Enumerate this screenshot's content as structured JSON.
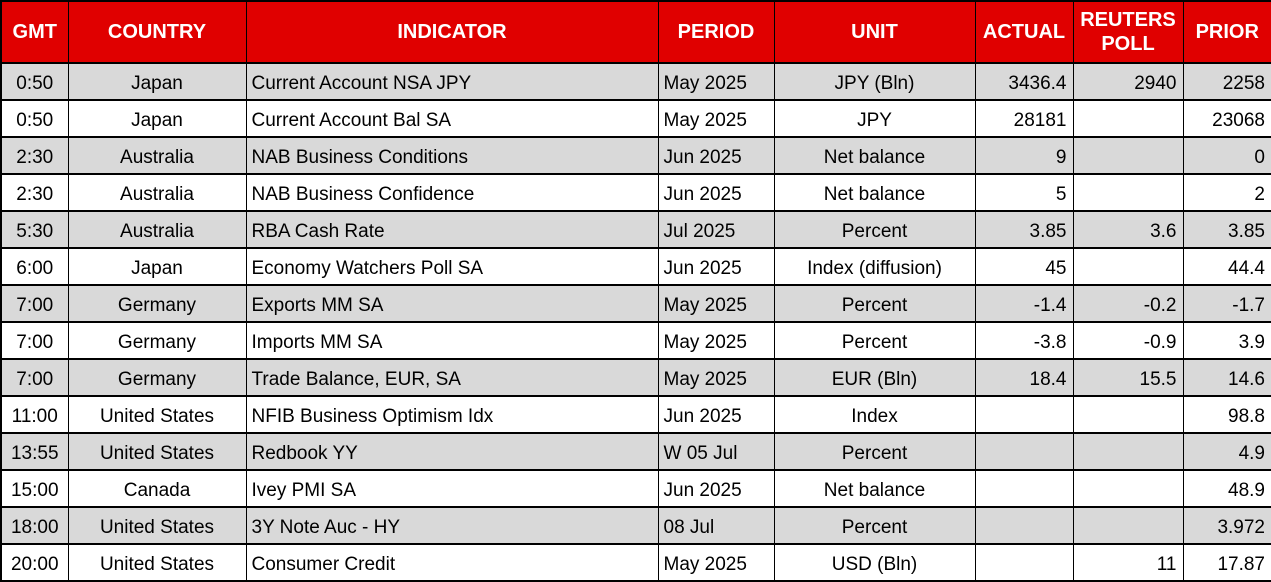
{
  "colors": {
    "header_bg": "#e00000",
    "header_text": "#ffffff",
    "row_odd_bg": "#d9d9d9",
    "row_even_bg": "#ffffff",
    "grid": "#000000",
    "body_text": "#000000"
  },
  "table": {
    "columns": [
      {
        "key": "gmt",
        "label": "GMT"
      },
      {
        "key": "country",
        "label": "COUNTRY"
      },
      {
        "key": "indicator",
        "label": "INDICATOR"
      },
      {
        "key": "period",
        "label": "PERIOD"
      },
      {
        "key": "unit",
        "label": "UNIT"
      },
      {
        "key": "actual",
        "label": "ACTUAL"
      },
      {
        "key": "reuters_poll",
        "label": "REUTERS POLL"
      },
      {
        "key": "prior",
        "label": "PRIOR"
      }
    ],
    "rows": [
      {
        "gmt": "0:50",
        "country": "Japan",
        "indicator": "Current Account NSA JPY",
        "period": "May 2025",
        "unit": "JPY (Bln)",
        "actual": "3436.4",
        "reuters_poll": "2940",
        "prior": "2258"
      },
      {
        "gmt": "0:50",
        "country": "Japan",
        "indicator": "Current Account Bal SA",
        "period": "May 2025",
        "unit": "JPY",
        "actual": "28181",
        "reuters_poll": "",
        "prior": "23068"
      },
      {
        "gmt": "2:30",
        "country": "Australia",
        "indicator": "NAB Business Conditions",
        "period": "Jun 2025",
        "unit": "Net balance",
        "actual": "9",
        "reuters_poll": "",
        "prior": "0"
      },
      {
        "gmt": "2:30",
        "country": "Australia",
        "indicator": "NAB Business Confidence",
        "period": "Jun 2025",
        "unit": "Net balance",
        "actual": "5",
        "reuters_poll": "",
        "prior": "2"
      },
      {
        "gmt": "5:30",
        "country": "Australia",
        "indicator": "RBA Cash Rate",
        "period": "Jul 2025",
        "unit": "Percent",
        "actual": "3.85",
        "reuters_poll": "3.6",
        "prior": "3.85"
      },
      {
        "gmt": "6:00",
        "country": "Japan",
        "indicator": "Economy Watchers Poll SA",
        "period": "Jun 2025",
        "unit": "Index (diffusion)",
        "actual": "45",
        "reuters_poll": "",
        "prior": "44.4"
      },
      {
        "gmt": "7:00",
        "country": "Germany",
        "indicator": "Exports MM SA",
        "period": "May 2025",
        "unit": "Percent",
        "actual": "-1.4",
        "reuters_poll": "-0.2",
        "prior": "-1.7"
      },
      {
        "gmt": "7:00",
        "country": "Germany",
        "indicator": "Imports MM SA",
        "period": "May 2025",
        "unit": "Percent",
        "actual": "-3.8",
        "reuters_poll": "-0.9",
        "prior": "3.9"
      },
      {
        "gmt": "7:00",
        "country": "Germany",
        "indicator": "Trade Balance, EUR, SA",
        "period": "May 2025",
        "unit": "EUR (Bln)",
        "actual": "18.4",
        "reuters_poll": "15.5",
        "prior": "14.6"
      },
      {
        "gmt": "11:00",
        "country": "United States",
        "indicator": "NFIB Business Optimism Idx",
        "period": "Jun 2025",
        "unit": "Index",
        "actual": "",
        "reuters_poll": "",
        "prior": "98.8"
      },
      {
        "gmt": "13:55",
        "country": "United States",
        "indicator": "Redbook YY",
        "period": "W 05 Jul",
        "unit": "Percent",
        "actual": "",
        "reuters_poll": "",
        "prior": "4.9"
      },
      {
        "gmt": "15:00",
        "country": "Canada",
        "indicator": "Ivey PMI SA",
        "period": "Jun 2025",
        "unit": "Net balance",
        "actual": "",
        "reuters_poll": "",
        "prior": "48.9"
      },
      {
        "gmt": "18:00",
        "country": "United States",
        "indicator": "3Y Note Auc - HY",
        "period": "08 Jul",
        "unit": "Percent",
        "actual": "",
        "reuters_poll": "",
        "prior": "3.972"
      },
      {
        "gmt": "20:00",
        "country": "United States",
        "indicator": "Consumer Credit",
        "period": "May 2025",
        "unit": "USD (Bln)",
        "actual": "",
        "reuters_poll": "11",
        "prior": "17.87"
      }
    ]
  }
}
